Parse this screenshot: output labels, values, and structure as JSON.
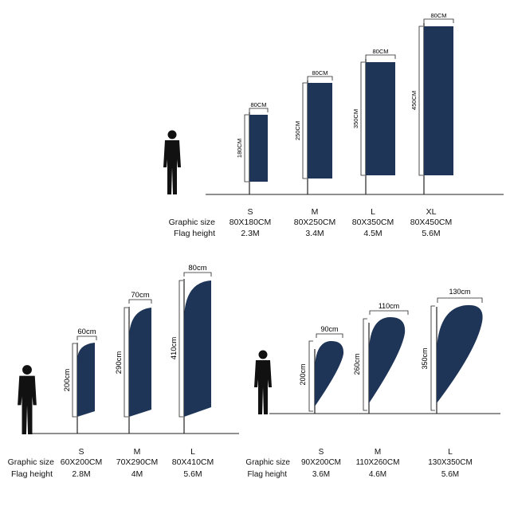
{
  "colors": {
    "flag": "#1e3557",
    "line": "#222222",
    "person": "#111111"
  },
  "sections": [
    {
      "id": "rectangle",
      "row_labels": [
        "Graphic size",
        "Flag height"
      ],
      "flags": [
        {
          "size": "S",
          "width_label": "80CM",
          "height_label": "180CM",
          "graphic": "80X180CM",
          "flag_height": "2.3M"
        },
        {
          "size": "M",
          "width_label": "80CM",
          "height_label": "250CM",
          "graphic": "80X250CM",
          "flag_height": "3.4M"
        },
        {
          "size": "L",
          "width_label": "80CM",
          "height_label": "350CM",
          "graphic": "80X350CM",
          "flag_height": "4.5M"
        },
        {
          "size": "XL",
          "width_label": "80CM",
          "height_label": "450CM",
          "graphic": "80X450CM",
          "flag_height": "5.6M"
        }
      ]
    },
    {
      "id": "feather",
      "row_labels": [
        "Graphic size",
        "Flag height"
      ],
      "flags": [
        {
          "size": "S",
          "width_label": "60cm",
          "height_label": "200cm",
          "graphic": "60X200CM",
          "flag_height": "2.8M"
        },
        {
          "size": "M",
          "width_label": "70cm",
          "height_label": "290cm",
          "graphic": "70X290CM",
          "flag_height": "4M"
        },
        {
          "size": "L",
          "width_label": "80cm",
          "height_label": "410cm",
          "graphic": "80X410CM",
          "flag_height": "5.6M"
        }
      ]
    },
    {
      "id": "teardrop",
      "row_labels": [
        "Graphic size",
        "Flag height"
      ],
      "flags": [
        {
          "size": "S",
          "width_label": "90cm",
          "height_label": "200cm",
          "graphic": "90X200CM",
          "flag_height": "3.6M"
        },
        {
          "size": "M",
          "width_label": "110cm",
          "height_label": "260cm",
          "graphic": "110X260CM",
          "flag_height": "4.6M"
        },
        {
          "size": "L",
          "width_label": "130cm",
          "height_label": "350cm",
          "graphic": "130X350CM",
          "flag_height": "5.6M"
        }
      ]
    }
  ]
}
